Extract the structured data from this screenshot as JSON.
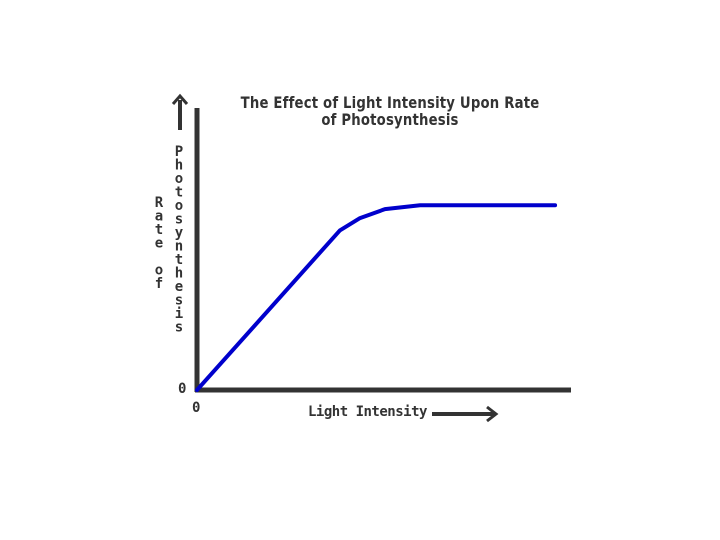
{
  "chart_data": {
    "type": "line",
    "title": "The Effect of Light Intensity Upon Rate of Photosynthesis",
    "title_lines": [
      "The Effect of Light Intensity Upon Rate",
      "of Photosynthesis"
    ],
    "xlabel": "Light Intensity",
    "ylabel_lines": [
      "Rate of",
      "Photosynthesis"
    ],
    "x_origin_label": "0",
    "y_origin_label": "0",
    "xlim": [
      0,
      100
    ],
    "ylim": [
      0,
      100
    ],
    "grid": false,
    "axis_arrows": true,
    "series": [
      {
        "color": "#0000cc",
        "x": [
          0,
          38.3,
          43.7,
          50.4,
          59.8,
          96
        ],
        "y": [
          0,
          57,
          61.4,
          64.6,
          66,
          66
        ]
      }
    ]
  }
}
